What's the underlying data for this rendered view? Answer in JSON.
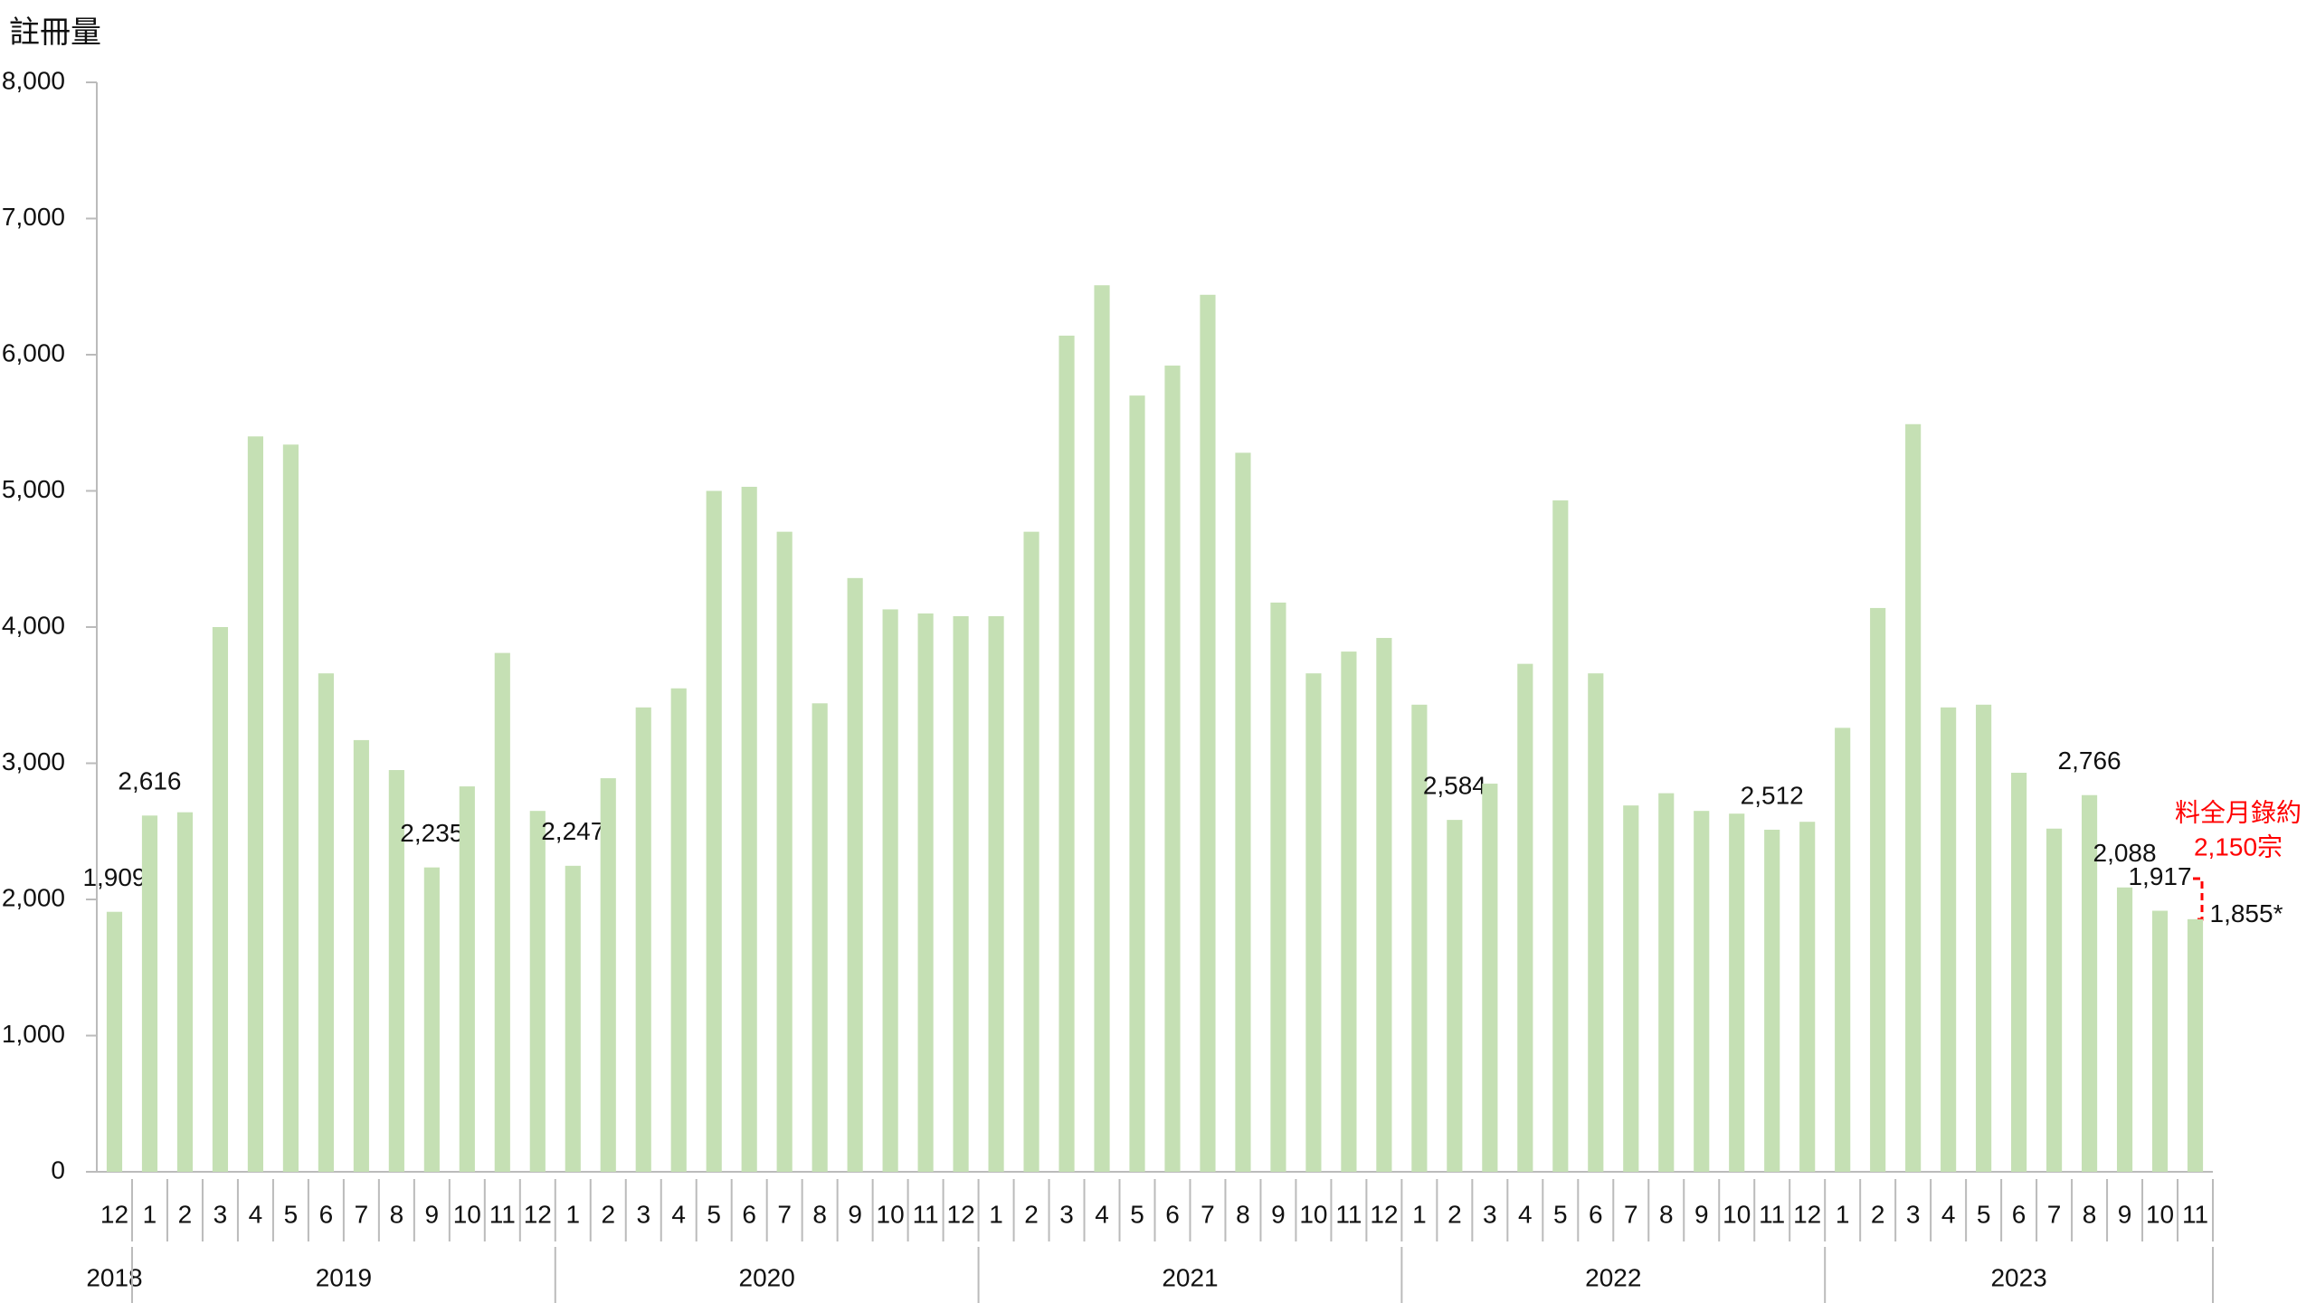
{
  "chart_data": {
    "type": "bar",
    "y_label": "註冊量",
    "categories": [
      "12",
      "1",
      "2",
      "3",
      "4",
      "5",
      "6",
      "7",
      "8",
      "9",
      "10",
      "11",
      "12",
      "1",
      "2",
      "3",
      "4",
      "5",
      "6",
      "7",
      "8",
      "9",
      "10",
      "11",
      "12",
      "1",
      "2",
      "3",
      "4",
      "5",
      "6",
      "7",
      "8",
      "9",
      "10",
      "11",
      "12",
      "1",
      "2",
      "3",
      "4",
      "5",
      "6",
      "7",
      "8",
      "9",
      "10",
      "11",
      "12",
      "1",
      "2",
      "3",
      "4",
      "5",
      "6",
      "7",
      "8",
      "9",
      "10",
      "11"
    ],
    "years": [
      "2018",
      "2019",
      "2020",
      "2021",
      "2022",
      "2023"
    ],
    "values": [
      1909,
      2616,
      2640,
      4000,
      5400,
      5340,
      3660,
      3170,
      2950,
      2235,
      2830,
      3810,
      2650,
      2247,
      2890,
      3410,
      3550,
      5000,
      5030,
      4700,
      3440,
      4360,
      4130,
      4100,
      4080,
      4080,
      4700,
      6140,
      6510,
      5700,
      5920,
      6440,
      5280,
      4180,
      3660,
      3820,
      3920,
      3430,
      2584,
      2850,
      3730,
      4930,
      3660,
      2690,
      2780,
      2650,
      2630,
      2512,
      2570,
      3260,
      4140,
      5490,
      3410,
      3430,
      2930,
      2520,
      2766,
      2088,
      1917,
      1855
    ],
    "value_labels": [
      "1,909",
      "2,616",
      null,
      null,
      null,
      null,
      null,
      null,
      null,
      "2,235",
      null,
      null,
      null,
      "2,247",
      null,
      null,
      null,
      null,
      null,
      null,
      null,
      null,
      null,
      null,
      null,
      null,
      null,
      null,
      null,
      null,
      null,
      null,
      null,
      null,
      null,
      null,
      null,
      null,
      "2,584",
      null,
      null,
      null,
      null,
      null,
      null,
      null,
      null,
      "2,512",
      null,
      null,
      null,
      null,
      null,
      null,
      null,
      null,
      "2,766",
      "2,088",
      "1,917",
      "1,855*"
    ],
    "color": "#c5e0b4",
    "ylim": [
      0,
      8000
    ],
    "yticks": [
      0,
      {
        "value": 1000,
        "label": "1,000"
      },
      {
        "value": 2000,
        "label": "2,000"
      },
      {
        "value": 3000,
        "label": "3,000"
      },
      {
        "value": 4000,
        "label": "4,000"
      },
      {
        "value": 5000,
        "label": "5,000"
      },
      {
        "value": 6000,
        "label": "6,000"
      },
      {
        "value": 7000,
        "label": "7,000"
      },
      {
        "value": 8000,
        "label": "8,000"
      }
    ],
    "annotation": [
      "料全月錄約",
      "2,150宗"
    ],
    "annotation_color": "#ff0000"
  }
}
